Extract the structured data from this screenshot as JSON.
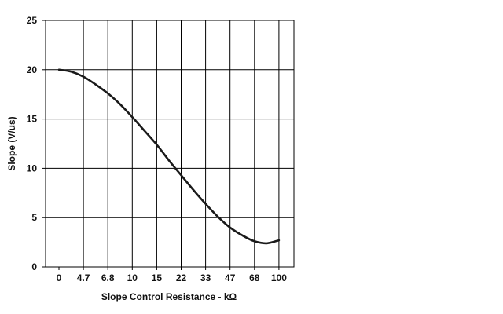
{
  "chart_data": {
    "type": "line",
    "title": "",
    "xlabel": "Slope Control Resistance - kΩ",
    "ylabel": "Slope (V/us)",
    "categories": [
      "0",
      "4.7",
      "6.8",
      "10",
      "15",
      "22",
      "33",
      "47",
      "68",
      "100"
    ],
    "ylim": [
      0,
      25
    ],
    "yticks": [
      "0",
      "5",
      "10",
      "15",
      "20",
      "25"
    ],
    "grid": true,
    "series": [
      {
        "x": [
          0,
          0.5,
          1,
          1.5,
          2,
          2.5,
          3,
          3.5,
          4,
          4.5,
          5,
          5.5,
          6,
          6.5,
          7,
          7.5,
          8,
          8.5,
          9
        ],
        "values": [
          20.0,
          19.8,
          19.3,
          18.5,
          17.6,
          16.5,
          15.2,
          13.8,
          12.4,
          10.8,
          9.3,
          7.8,
          6.4,
          5.1,
          4.0,
          3.2,
          2.6,
          2.4,
          2.7
        ]
      }
    ]
  }
}
